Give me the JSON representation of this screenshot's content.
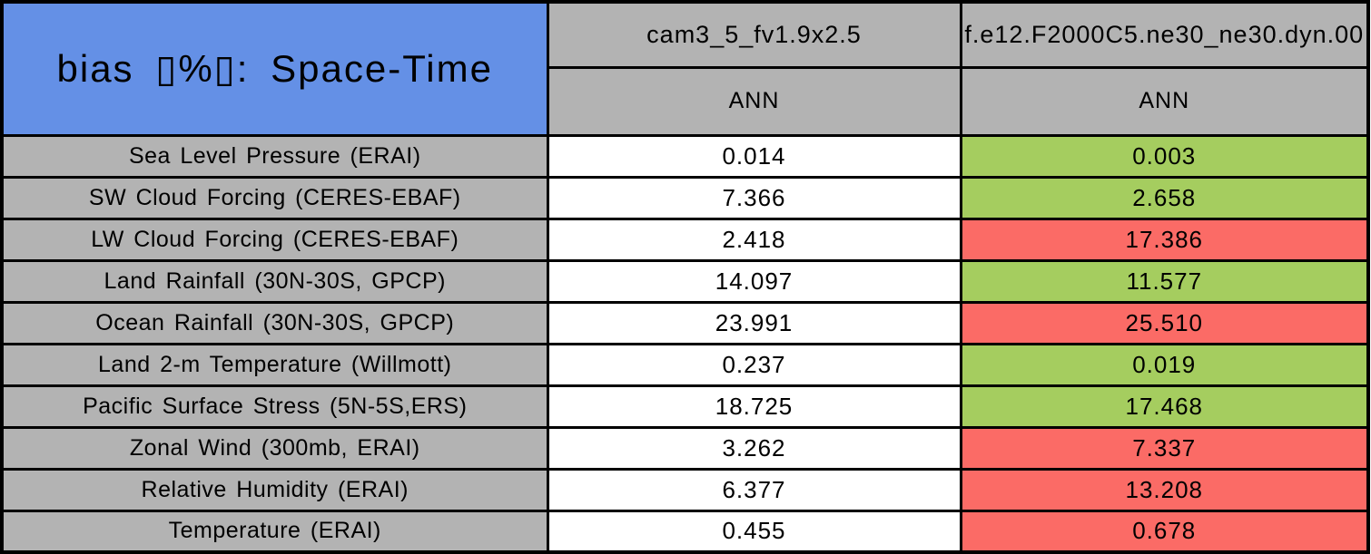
{
  "chart_data": {
    "type": "table",
    "title": "bias ▯%▯: Space-Time",
    "columns": [
      {
        "name": "cam3_5_fv1.9x2.5",
        "season": "ANN"
      },
      {
        "name": "f.e12.F2000C5.ne30_ne30.dyn.00",
        "season": "ANN"
      }
    ],
    "rows": [
      {
        "label": "Sea Level Pressure (ERAI)",
        "cells": [
          {
            "value": "0.014",
            "status": "neutral"
          },
          {
            "value": "0.003",
            "status": "good"
          }
        ]
      },
      {
        "label": "SW Cloud Forcing (CERES-EBAF)",
        "cells": [
          {
            "value": "7.366",
            "status": "neutral"
          },
          {
            "value": "2.658",
            "status": "good"
          }
        ]
      },
      {
        "label": "LW Cloud Forcing (CERES-EBAF)",
        "cells": [
          {
            "value": "2.418",
            "status": "neutral"
          },
          {
            "value": "17.386",
            "status": "bad"
          }
        ]
      },
      {
        "label": "Land Rainfall (30N-30S, GPCP)",
        "cells": [
          {
            "value": "14.097",
            "status": "neutral"
          },
          {
            "value": "11.577",
            "status": "good"
          }
        ]
      },
      {
        "label": "Ocean Rainfall (30N-30S, GPCP)",
        "cells": [
          {
            "value": "23.991",
            "status": "neutral"
          },
          {
            "value": "25.510",
            "status": "bad"
          }
        ]
      },
      {
        "label": "Land 2-m Temperature (Willmott)",
        "cells": [
          {
            "value": "0.237",
            "status": "neutral"
          },
          {
            "value": "0.019",
            "status": "good"
          }
        ]
      },
      {
        "label": "Pacific Surface Stress (5N-5S,ERS)",
        "cells": [
          {
            "value": "18.725",
            "status": "neutral"
          },
          {
            "value": "17.468",
            "status": "good"
          }
        ]
      },
      {
        "label": "Zonal Wind (300mb, ERAI)",
        "cells": [
          {
            "value": "3.262",
            "status": "neutral"
          },
          {
            "value": "7.337",
            "status": "bad"
          }
        ]
      },
      {
        "label": "Relative Humidity (ERAI)",
        "cells": [
          {
            "value": "6.377",
            "status": "neutral"
          },
          {
            "value": "13.208",
            "status": "bad"
          }
        ]
      },
      {
        "label": "Temperature (ERAI)",
        "cells": [
          {
            "value": "0.455",
            "status": "neutral"
          },
          {
            "value": "0.678",
            "status": "bad"
          }
        ]
      }
    ]
  },
  "colors": {
    "title_bg": "#6490e6",
    "header_bg": "#b3b3b3",
    "good_bg": "#a5cd5f",
    "bad_bg": "#fb6b66",
    "neutral_bg": "#ffffff",
    "border": "#000000",
    "text": "#000000"
  }
}
